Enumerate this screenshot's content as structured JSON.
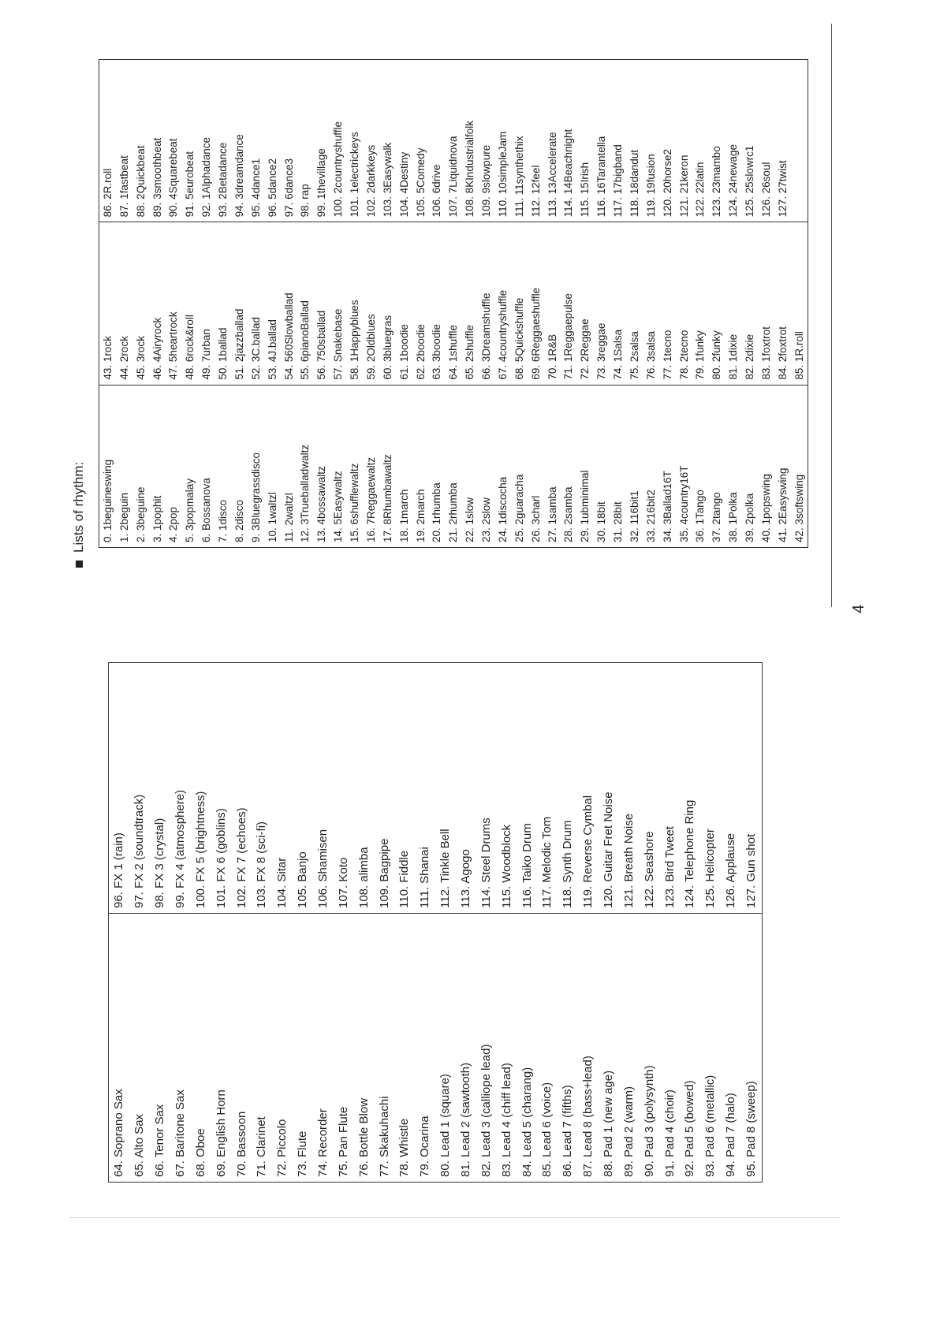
{
  "title": "Lists of rhythm:",
  "page_number": "4",
  "rhythm_table": {
    "columns": [
      [
        "0. 1beguineswing",
        "1. 2beguin",
        "2. 3beguine",
        "3. 1pophit",
        "4. 2pop",
        "5. 3popmalay",
        "6. Bossanova",
        "7. 1disco",
        "8. 2disco",
        "9. 3Bluegrassdisco",
        "10. 1waltzl",
        "11. 2waltzl",
        "12. 3Trueballadwaltz",
        "13. 4bossawaltz",
        "14. 5Easywaltz",
        "15. 6shufflewaltz",
        "16. 7Reggaewaltz",
        "17. 8Rhumbawaltz",
        "18. 1march",
        "19. 2march",
        "20. 1rhumba",
        "21. 2rhumba",
        "22. 1slow",
        "23. 2slow",
        "24. 1discocha",
        "25. 2guaracha",
        "26. 3charl",
        "27. 1samba",
        "28. 2samba",
        "29. 1ubminimal",
        "30. 18bit",
        "31. 28bit",
        "32. 116bit1",
        "33. 216bit2",
        "34. 3Ballad16T",
        "35. 4country16T",
        "36. 1Tango",
        "37. 2tango",
        "38. 1Polka",
        "39. 2polka",
        "40. 1popswing",
        "41. 2Easyswing",
        "42. 3softswing"
      ],
      [
        "43. 1rock",
        "44. 2rock",
        "45. 3rock",
        "46. 4Airyrock",
        "47. 5heartrock",
        "48. 6rock&roll",
        "49. 7urban",
        "50. 1ballad",
        "51. 2jazzballad",
        "52. 3C.ballad",
        "53. 4J.ballad",
        "54. 560Slowballad",
        "55. 6pianoBallad",
        "56. 750sballad",
        "57. Snakebase",
        "58. 1Happyblues",
        "59. 2Oldblues",
        "60. 3bluegras",
        "61. 1boodie",
        "62. 2boodie",
        "63. 3boodie",
        "64. 1shuffle",
        "65. 2shuffle",
        "66. 3Dreamshuffle",
        "67. 4countryshuffle",
        "68. 5Quickshuffle",
        "69. 6Reggaeshuffle",
        "70. 1R&B",
        "71. 1Reggaepulse",
        "72. 2Reggae",
        "73. 3reggae",
        "74. 1Salsa",
        "75. 2salsa",
        "76. 3salsa",
        "77. 1tecno",
        "78. 2tecno",
        "79. 1funky",
        "80. 2funky",
        "81. 1dixie",
        "82. 2dixie",
        "83. 1foxtrot",
        "84. 2foxtrot",
        "85. 1R.roll"
      ],
      [
        "86. 2R.roll",
        "87. 1fastbeat",
        "88. 2Quickbeat",
        "89. 3smoothbeat",
        "90. 4Squarebeat",
        "91. 5eurobeat",
        "92. 1Alphadance",
        "93. 2Betadance",
        "94. 3dreamdance",
        "95. 4dance1",
        "96. 5dance2",
        "97. 6dance3",
        "98. rap",
        "99. 1thevillage",
        "100. 2countryshuffle",
        "101. 1electrickeys",
        "102. 2darkkeys",
        "103. 3Easywalk",
        "104. 4Destiny",
        "105. 5Comedy",
        "106. 6drive",
        "107. 7Liquidnova",
        "108. 8KIndustrialfolk",
        "109. 9slowpure",
        "110. 10simpleJam",
        "111. 11synthethix",
        "112. 12feel",
        "113. 13Accelerate",
        "114. 14Beachnight",
        "115. 15Irish",
        "116. 16Tarantella",
        "117. 17bigband",
        "118. 18dandut",
        "119. 19fusion",
        "120. 20horse2",
        "121. 21keron",
        "122. 22latin",
        "123. 23mambo",
        "124. 24newage",
        "125. 25slowrc1",
        "126. 26soul",
        "127. 27twist"
      ]
    ]
  },
  "instrument_table": {
    "columns": [
      [
        "64. Soprano Sax",
        "65. Alto Sax",
        "66. Tenor Sax",
        "67. Baritone Sax",
        "68. Oboe",
        "69. English Horn",
        "70. Bassoon",
        "71. Clarinet",
        "72. Piccolo",
        "73. Flute",
        "74. Recorder",
        "75. Pan Flute",
        "76. Bottle Blow",
        "77. Skakuhachi",
        "78. Whistle",
        "79. Ocarina",
        "80. Lead 1 (square)",
        "81. Lead 2 (sawtooth)",
        "82. Lead 3 (calliope lead)",
        "83. Lead 4 (chiff lead)",
        "84. Lead 5 (charang)",
        "85. Lead 6 (voice)",
        "86. Lead 7 (fifths)",
        "87. Lead 8 (bass+lead)",
        "88. Pad 1 (new age)",
        "89. Pad 2 (warm)",
        "90. Pad 3 (polysynth)",
        "91. Pad 4 (choir)",
        "92. Pad 5 (bowed)",
        "93. Pad 6 (metallic)",
        "94. Pad 7 (halo)",
        "95. Pad 8 (sweep)"
      ],
      [
        "96. FX 1 (rain)",
        "97. FX 2 (soundtrack)",
        "98. FX 3 (crystal)",
        "99. FX 4 (atmosphere)",
        "100. FX 5 (brightness)",
        "101. FX 6 (goblins)",
        "102. FX 7 (echoes)",
        "103. FX 8 (sci-fi)",
        "104. Sitar",
        "105. Banjo",
        "106. Shamisen",
        "107. Koto",
        "108. alimba",
        "109. Bagpipe",
        "110. Fiddle",
        "111. Shanai",
        "112. Tinkle Bell",
        "113. Agogo",
        "114. Steel Drums",
        "115. Woodblock",
        "116. Taiko Drum",
        "117. Melodic Tom",
        "118. Synth Drum",
        "119. Reverse Cymbal",
        "120. Guitar Fret Noise",
        "121. Breath Noise",
        "122. Seashore",
        "123. Bird Tweet",
        "124. Telephone Ring",
        "125. Helicopter",
        "126. Applause",
        "127. Gun shot"
      ]
    ]
  }
}
